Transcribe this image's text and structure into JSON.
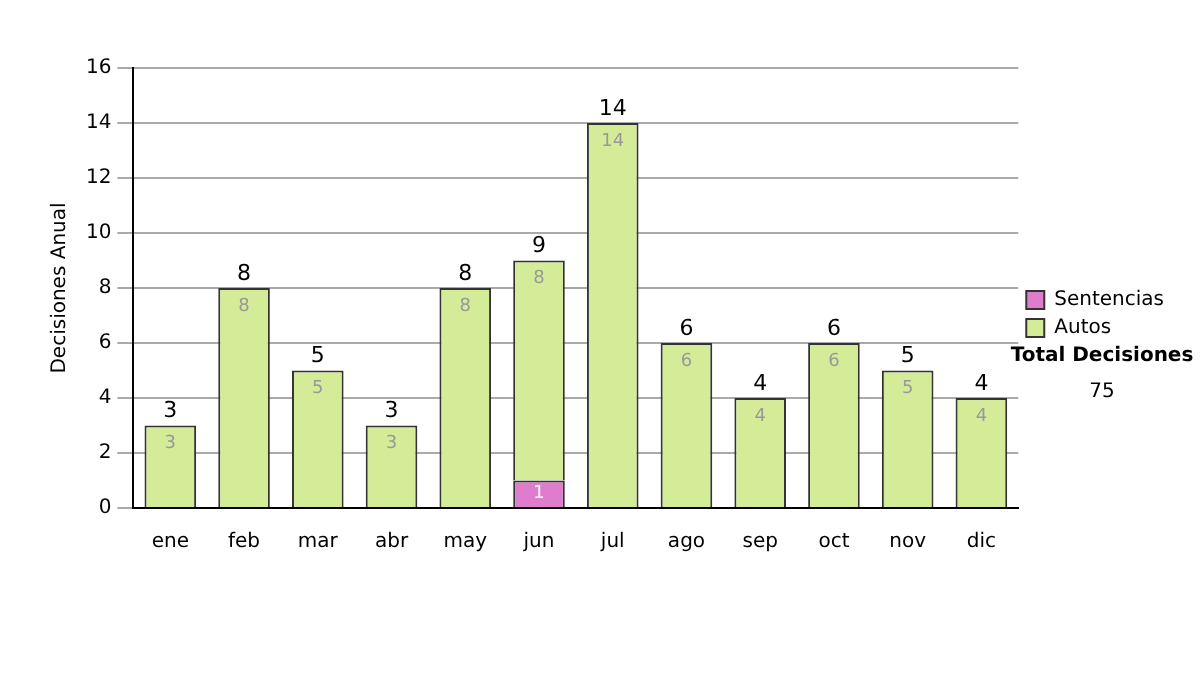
{
  "chart_data": {
    "type": "bar",
    "ylabel": "Decisiones Anual",
    "categories": [
      "ene",
      "feb",
      "mar",
      "abr",
      "may",
      "jun",
      "jul",
      "ago",
      "sep",
      "oct",
      "nov",
      "dic"
    ],
    "stacked": true,
    "series": [
      {
        "name": "Sentencias",
        "color": "#e07ccc",
        "values": [
          0,
          0,
          0,
          0,
          0,
          1,
          0,
          0,
          0,
          0,
          0,
          0
        ],
        "value_labels": [
          null,
          null,
          null,
          null,
          null,
          "1",
          null,
          null,
          null,
          null,
          null,
          null
        ]
      },
      {
        "name": "Autos",
        "color": "#d4ec98",
        "values": [
          3,
          8,
          5,
          3,
          8,
          8,
          14,
          6,
          4,
          6,
          5,
          4
        ],
        "value_labels": [
          "3",
          "8",
          "5",
          "3",
          "8",
          "8",
          "14",
          "6",
          "4",
          "6",
          "5",
          "4"
        ]
      }
    ],
    "totals": [
      "3",
      "8",
      "5",
      "3",
      "8",
      "9",
      "14",
      "6",
      "4",
      "6",
      "5",
      "4"
    ],
    "ylim": [
      0,
      16
    ],
    "yticks": [
      0,
      2,
      4,
      6,
      8,
      10,
      12,
      14,
      16
    ],
    "grid": "y",
    "legend": "right",
    "annotations": [
      "Total Decisiones",
      "75"
    ]
  }
}
